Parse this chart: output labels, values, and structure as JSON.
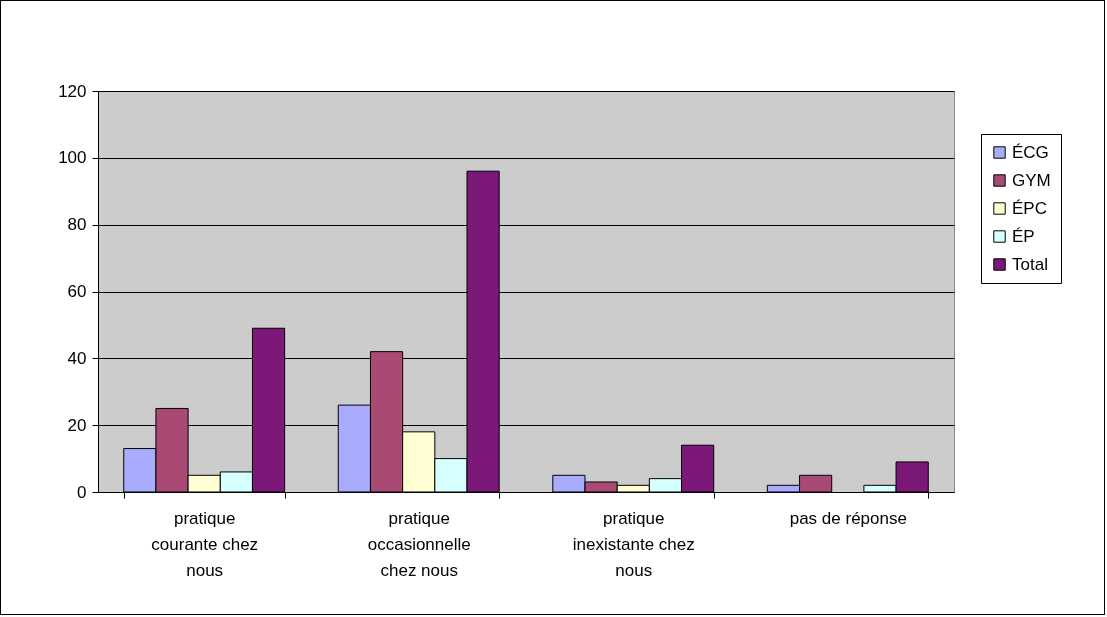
{
  "chart_data": {
    "type": "bar",
    "categories": [
      "pratique courante chez nous",
      "pratique occasionnelle chez nous",
      "pratique inexistante chez nous",
      "pas de réponse"
    ],
    "series": [
      {
        "name": "ÉCG",
        "color": "#a9abfe",
        "values": [
          13,
          26,
          5,
          2
        ]
      },
      {
        "name": "GYM",
        "color": "#a94a75",
        "values": [
          25,
          42,
          3,
          5
        ]
      },
      {
        "name": "ÉPC",
        "color": "#ffffd3",
        "values": [
          5,
          18,
          2,
          null
        ]
      },
      {
        "name": "ÉP",
        "color": "#d6ffff",
        "values": [
          6,
          10,
          4,
          2
        ]
      },
      {
        "name": "Total",
        "color": "#7c1878",
        "values": [
          49,
          96,
          14,
          9
        ]
      }
    ],
    "ylim": [
      0,
      120
    ],
    "yticks": [
      0,
      20,
      40,
      60,
      80,
      100,
      120
    ],
    "grid": "y",
    "legend": "right"
  }
}
